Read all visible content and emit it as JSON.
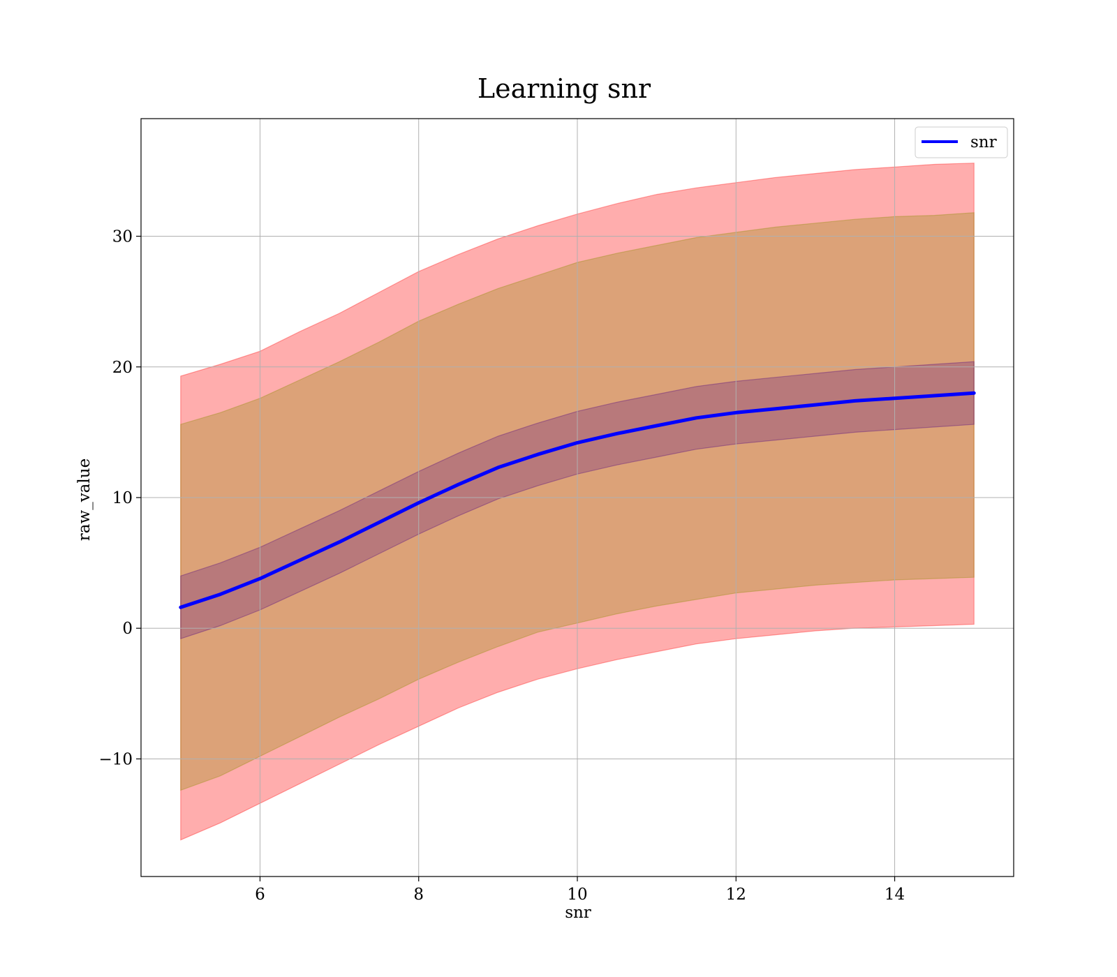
{
  "chart_data": {
    "type": "line",
    "title": "Learning snr",
    "xlabel": "snr",
    "ylabel": "raw_value",
    "xlim": [
      4.5,
      15.5
    ],
    "ylim": [
      -19,
      39
    ],
    "xticks": [
      6,
      8,
      10,
      12,
      14
    ],
    "yticks": [
      -10,
      0,
      10,
      20,
      30
    ],
    "ytick_labels": [
      "−10",
      "0",
      "10",
      "20",
      "30"
    ],
    "grid": true,
    "legend": {
      "placement": "top-right",
      "entries": [
        "snr"
      ]
    },
    "series": [
      {
        "name": "snr",
        "color": "#0000ff",
        "x": [
          5.0,
          5.5,
          6.0,
          6.5,
          7.0,
          7.5,
          8.0,
          8.5,
          9.0,
          9.5,
          10.0,
          10.5,
          11.0,
          11.5,
          12.0,
          12.5,
          13.0,
          13.5,
          14.0,
          14.5,
          15.0
        ],
        "y": [
          1.6,
          2.6,
          3.8,
          5.2,
          6.6,
          8.1,
          9.6,
          11.0,
          12.3,
          13.3,
          14.2,
          14.9,
          15.5,
          16.1,
          16.5,
          16.8,
          17.1,
          17.4,
          17.6,
          17.8,
          18.0
        ]
      }
    ],
    "bands": [
      {
        "color": "#ff0000",
        "opacity": 0.32,
        "lower": [
          -16.2,
          -14.9,
          -13.4,
          -11.9,
          -10.4,
          -8.9,
          -7.5,
          -6.1,
          -4.9,
          -3.9,
          -3.1,
          -2.4,
          -1.8,
          -1.2,
          -0.8,
          -0.5,
          -0.2,
          0.0,
          0.1,
          0.2,
          0.3
        ],
        "upper": [
          19.3,
          20.2,
          21.2,
          22.7,
          24.1,
          25.7,
          27.3,
          28.6,
          29.8,
          30.8,
          31.7,
          32.5,
          33.2,
          33.7,
          34.1,
          34.5,
          34.8,
          35.1,
          35.3,
          35.5,
          35.6
        ]
      },
      {
        "color": "#8b8b00",
        "opacity": 0.3,
        "lower": [
          -12.4,
          -11.3,
          -9.8,
          -8.3,
          -6.8,
          -5.4,
          -3.9,
          -2.6,
          -1.4,
          -0.3,
          0.4,
          1.1,
          1.7,
          2.2,
          2.7,
          3.0,
          3.3,
          3.5,
          3.7,
          3.8,
          3.9
        ],
        "upper": [
          15.6,
          16.5,
          17.6,
          19.0,
          20.4,
          21.9,
          23.5,
          24.8,
          26.0,
          27.0,
          28.0,
          28.7,
          29.3,
          29.9,
          30.3,
          30.7,
          31.0,
          31.3,
          31.5,
          31.6,
          31.8
        ]
      },
      {
        "color": "#4b0082",
        "opacity": 0.25,
        "lower": [
          -0.8,
          0.2,
          1.4,
          2.8,
          4.2,
          5.7,
          7.2,
          8.6,
          9.9,
          10.9,
          11.8,
          12.5,
          13.1,
          13.7,
          14.1,
          14.4,
          14.7,
          15.0,
          15.2,
          15.4,
          15.6
        ],
        "upper": [
          4.0,
          5.0,
          6.2,
          7.6,
          9.0,
          10.5,
          12.0,
          13.4,
          14.7,
          15.7,
          16.6,
          17.3,
          17.9,
          18.5,
          18.9,
          19.2,
          19.5,
          19.8,
          20.0,
          20.2,
          20.4
        ]
      }
    ]
  }
}
